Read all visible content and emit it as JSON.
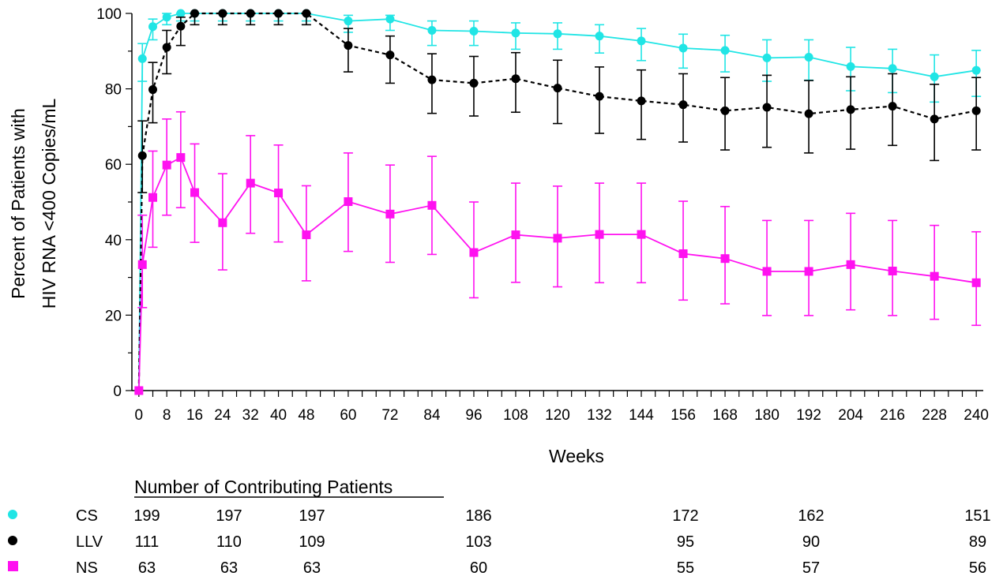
{
  "chart_data": {
    "type": "line",
    "title": "",
    "xlabel": "Weeks",
    "ylabel_lines": [
      "Percent of Patients with",
      "HIV RNA <400 Copies/mL"
    ],
    "xlim": [
      -2,
      242
    ],
    "ylim": [
      0,
      100
    ],
    "x_ticks": [
      0,
      8,
      16,
      24,
      32,
      40,
      48,
      60,
      72,
      84,
      96,
      108,
      120,
      132,
      144,
      156,
      168,
      180,
      192,
      204,
      216,
      228,
      240
    ],
    "y_ticks": [
      0,
      20,
      40,
      60,
      80,
      100
    ],
    "grid": false,
    "series": [
      {
        "name": "CS",
        "color": "#20e5e5",
        "marker": "circle",
        "line_style": "solid",
        "points": [
          {
            "x": 0,
            "y": 0
          },
          {
            "x": 1,
            "y": 88,
            "lo": 82,
            "hi": 92
          },
          {
            "x": 4,
            "y": 96.5,
            "lo": 93,
            "hi": 98.5
          },
          {
            "x": 8,
            "y": 99,
            "lo": 97,
            "hi": 100
          },
          {
            "x": 12,
            "y": 100,
            "lo": 98,
            "hi": 100
          },
          {
            "x": 16,
            "y": 100,
            "lo": 98,
            "hi": 100
          },
          {
            "x": 24,
            "y": 100,
            "lo": 98,
            "hi": 100
          },
          {
            "x": 32,
            "y": 100,
            "lo": 98,
            "hi": 100
          },
          {
            "x": 40,
            "y": 100,
            "lo": 98,
            "hi": 100
          },
          {
            "x": 48,
            "y": 100,
            "lo": 98,
            "hi": 100
          },
          {
            "x": 60,
            "y": 98,
            "lo": 95,
            "hi": 99.5
          },
          {
            "x": 72,
            "y": 98.5,
            "lo": 95.5,
            "hi": 99.5
          },
          {
            "x": 84,
            "y": 95.5,
            "lo": 91.5,
            "hi": 98
          },
          {
            "x": 96,
            "y": 95.3,
            "lo": 91.5,
            "hi": 98
          },
          {
            "x": 108,
            "y": 94.8,
            "lo": 90.5,
            "hi": 97.5
          },
          {
            "x": 120,
            "y": 94.6,
            "lo": 90.5,
            "hi": 97.5
          },
          {
            "x": 132,
            "y": 94,
            "lo": 89.5,
            "hi": 97
          },
          {
            "x": 144,
            "y": 92.7,
            "lo": 87.5,
            "hi": 96
          },
          {
            "x": 156,
            "y": 90.8,
            "lo": 85.5,
            "hi": 94.5
          },
          {
            "x": 168,
            "y": 90.2,
            "lo": 84.5,
            "hi": 94.2
          },
          {
            "x": 180,
            "y": 88.2,
            "lo": 82,
            "hi": 93
          },
          {
            "x": 192,
            "y": 88.4,
            "lo": 82.3,
            "hi": 93
          },
          {
            "x": 204,
            "y": 85.9,
            "lo": 79.5,
            "hi": 91
          },
          {
            "x": 216,
            "y": 85.4,
            "lo": 79,
            "hi": 90.5
          },
          {
            "x": 228,
            "y": 83.2,
            "lo": 76.5,
            "hi": 89
          },
          {
            "x": 240,
            "y": 84.9,
            "lo": 78,
            "hi": 90.2
          }
        ]
      },
      {
        "name": "LLV",
        "color": "#000000",
        "marker": "circle",
        "line_style": "dashed",
        "points": [
          {
            "x": 0,
            "y": 0
          },
          {
            "x": 1,
            "y": 62.3,
            "lo": 52.5,
            "hi": 71.5
          },
          {
            "x": 4,
            "y": 79.8,
            "lo": 71,
            "hi": 87
          },
          {
            "x": 8,
            "y": 91,
            "lo": 84,
            "hi": 95.5
          },
          {
            "x": 12,
            "y": 96.6,
            "lo": 91.5,
            "hi": 99
          },
          {
            "x": 16,
            "y": 100,
            "lo": 97,
            "hi": 100
          },
          {
            "x": 24,
            "y": 100,
            "lo": 97,
            "hi": 100
          },
          {
            "x": 32,
            "y": 100,
            "lo": 97,
            "hi": 100
          },
          {
            "x": 40,
            "y": 100,
            "lo": 97,
            "hi": 100
          },
          {
            "x": 48,
            "y": 100,
            "lo": 97,
            "hi": 100
          },
          {
            "x": 60,
            "y": 91.5,
            "lo": 84.5,
            "hi": 96
          },
          {
            "x": 72,
            "y": 89,
            "lo": 81.5,
            "hi": 94
          },
          {
            "x": 84,
            "y": 82.4,
            "lo": 73.5,
            "hi": 89.3
          },
          {
            "x": 96,
            "y": 81.5,
            "lo": 72.8,
            "hi": 88.6
          },
          {
            "x": 108,
            "y": 82.7,
            "lo": 73.8,
            "hi": 89.6
          },
          {
            "x": 120,
            "y": 80.2,
            "lo": 70.8,
            "hi": 87.6
          },
          {
            "x": 132,
            "y": 78,
            "lo": 68.2,
            "hi": 85.8
          },
          {
            "x": 144,
            "y": 76.8,
            "lo": 66.6,
            "hi": 85
          },
          {
            "x": 156,
            "y": 75.8,
            "lo": 65.9,
            "hi": 84
          },
          {
            "x": 168,
            "y": 74.2,
            "lo": 63.8,
            "hi": 83
          },
          {
            "x": 180,
            "y": 75.1,
            "lo": 64.5,
            "hi": 83.6
          },
          {
            "x": 192,
            "y": 73.4,
            "lo": 63,
            "hi": 82.2
          },
          {
            "x": 204,
            "y": 74.5,
            "lo": 64,
            "hi": 83.2
          },
          {
            "x": 216,
            "y": 75.4,
            "lo": 65,
            "hi": 84
          },
          {
            "x": 228,
            "y": 72,
            "lo": 61,
            "hi": 81.2
          },
          {
            "x": 240,
            "y": 74.2,
            "lo": 63.8,
            "hi": 83
          }
        ]
      },
      {
        "name": "NS",
        "color": "#ff11f0",
        "marker": "square",
        "line_style": "solid",
        "points": [
          {
            "x": 0,
            "y": 0
          },
          {
            "x": 1,
            "y": 33.4,
            "lo": 22,
            "hi": 46.5
          },
          {
            "x": 4,
            "y": 51.2,
            "lo": 38,
            "hi": 63.5
          },
          {
            "x": 8,
            "y": 59.8,
            "lo": 46.5,
            "hi": 72
          },
          {
            "x": 12,
            "y": 61.8,
            "lo": 48.5,
            "hi": 73.9
          },
          {
            "x": 16,
            "y": 52.5,
            "lo": 39.3,
            "hi": 65.4
          },
          {
            "x": 24,
            "y": 44.5,
            "lo": 32,
            "hi": 57.5
          },
          {
            "x": 32,
            "y": 55,
            "lo": 41.7,
            "hi": 67.6
          },
          {
            "x": 40,
            "y": 52.4,
            "lo": 39.4,
            "hi": 65.1
          },
          {
            "x": 48,
            "y": 41.3,
            "lo": 29.1,
            "hi": 54.3
          },
          {
            "x": 60,
            "y": 50.1,
            "lo": 36.9,
            "hi": 63
          },
          {
            "x": 72,
            "y": 46.8,
            "lo": 34,
            "hi": 59.8
          },
          {
            "x": 84,
            "y": 49.1,
            "lo": 36.1,
            "hi": 62.1
          },
          {
            "x": 96,
            "y": 36.6,
            "lo": 24.6,
            "hi": 50
          },
          {
            "x": 108,
            "y": 41.3,
            "lo": 28.7,
            "hi": 55
          },
          {
            "x": 120,
            "y": 40.4,
            "lo": 27.5,
            "hi": 54.2
          },
          {
            "x": 132,
            "y": 41.4,
            "lo": 28.6,
            "hi": 55
          },
          {
            "x": 144,
            "y": 41.4,
            "lo": 28.6,
            "hi": 55
          },
          {
            "x": 156,
            "y": 36.3,
            "lo": 24,
            "hi": 50.2
          },
          {
            "x": 168,
            "y": 35,
            "lo": 23,
            "hi": 48.8
          },
          {
            "x": 180,
            "y": 31.6,
            "lo": 19.9,
            "hi": 45.1
          },
          {
            "x": 192,
            "y": 31.6,
            "lo": 19.9,
            "hi": 45.1
          },
          {
            "x": 204,
            "y": 33.4,
            "lo": 21.4,
            "hi": 47
          },
          {
            "x": 216,
            "y": 31.7,
            "lo": 19.9,
            "hi": 45.1
          },
          {
            "x": 228,
            "y": 30.3,
            "lo": 18.9,
            "hi": 43.8
          },
          {
            "x": 240,
            "y": 28.6,
            "lo": 17.3,
            "hi": 42.1
          }
        ]
      }
    ]
  },
  "patients_table": {
    "title": "Number of Contributing Patients",
    "rows": [
      {
        "label": "CS",
        "marker": "circle",
        "color": "#20e5e5",
        "cells": [
          {
            "x": 0,
            "text": "199"
          },
          {
            "x": 24,
            "text": "197"
          },
          {
            "x": 48,
            "text": "197"
          },
          {
            "x": 96,
            "text": "186"
          },
          {
            "x": 168,
            "text": "172"
          },
          {
            "x": 204,
            "text": "162"
          },
          {
            "x": 252,
            "text": "151"
          }
        ]
      },
      {
        "label": "LLV",
        "marker": "circle",
        "color": "#000000",
        "cells": [
          {
            "x": 0,
            "text": "111"
          },
          {
            "x": 24,
            "text": "110"
          },
          {
            "x": 48,
            "text": "109"
          },
          {
            "x": 96,
            "text": "103"
          },
          {
            "x": 168,
            "text": "95"
          },
          {
            "x": 204,
            "text": "90"
          },
          {
            "x": 252,
            "text": "89"
          }
        ]
      },
      {
        "label": "NS",
        "marker": "square",
        "color": "#ff11f0",
        "cells": [
          {
            "x": 0,
            "text": "63"
          },
          {
            "x": 24,
            "text": "63"
          },
          {
            "x": 48,
            "text": "63"
          },
          {
            "x": 96,
            "text": "60"
          },
          {
            "x": 168,
            "text": "55"
          },
          {
            "x": 204,
            "text": "57"
          },
          {
            "x": 252,
            "text": "56"
          }
        ]
      }
    ]
  }
}
